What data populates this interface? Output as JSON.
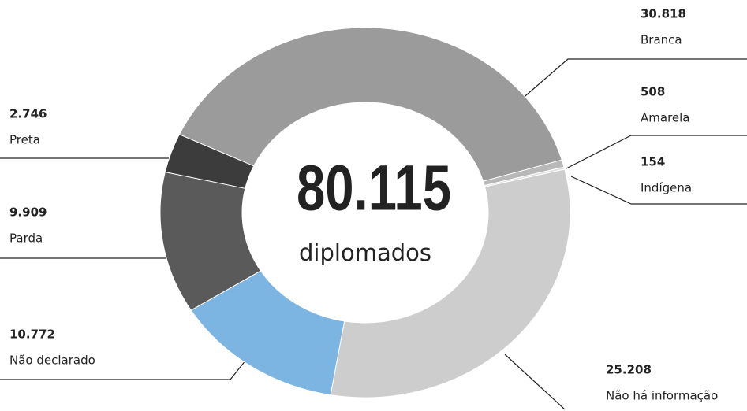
{
  "chart_data": {
    "type": "donut",
    "center_label": "80.115",
    "center_text": "diplomados",
    "categories": [
      "Branca",
      "Amarela",
      "Indígena",
      "Não há informação",
      "Não declarado",
      "Parda",
      "Preta"
    ],
    "values": [
      30818,
      508,
      154,
      25208,
      10772,
      9909,
      2746
    ],
    "value_labels": [
      "30.818",
      "508",
      "154",
      "25.208",
      "10.772",
      "9.909",
      "2.746"
    ],
    "colors": [
      "#9b9b9b",
      "#b8b8b8",
      "#e0e0e0",
      "#cdcdcd",
      "#7cb4e2",
      "#5a5a5a",
      "#3c3c3c"
    ]
  }
}
